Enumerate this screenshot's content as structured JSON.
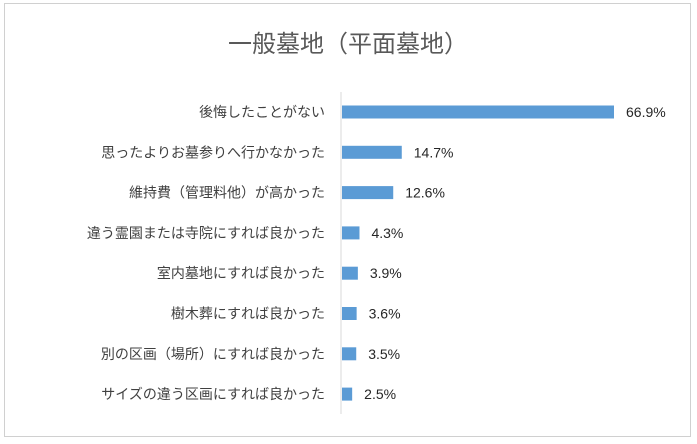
{
  "chart_data": {
    "type": "bar",
    "orientation": "horizontal",
    "title": "一般墓地（平面墓地）",
    "categories": [
      "後悔したことがない",
      "思ったよりお墓参りへ行かなかった",
      "維持費（管理料他）が高かった",
      "違う霊園または寺院にすれば良かった",
      "室内墓地にすれば良かった",
      "樹木葬にすれば良かった",
      "別の区画（場所）にすれば良かった",
      "サイズの違う区画にすれば良かった"
    ],
    "values": [
      66.9,
      14.7,
      12.6,
      4.3,
      3.9,
      3.6,
      3.5,
      2.5
    ],
    "value_labels": [
      "66.9%",
      "14.7%",
      "12.6%",
      "4.3%",
      "3.9%",
      "3.6%",
      "3.5%",
      "2.5%"
    ],
    "xlim": [
      0,
      70
    ],
    "unit": "%",
    "bar_color": "#5b9bd5",
    "axis_color": "#d9d9d9",
    "grid": false,
    "legend": "none"
  }
}
